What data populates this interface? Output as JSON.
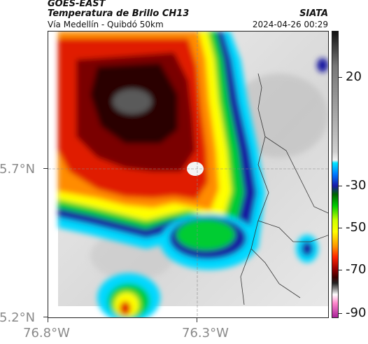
{
  "header": {
    "satellite": "GOES-EAST",
    "title": "Temperatura de Brillo CH13",
    "route": "Vía Medellín - Quibdó 50km",
    "org": "SIATA",
    "timestamp": "2024-04-26 00:29"
  },
  "axes": {
    "lat_labels": [
      "5.7°N",
      "5.2°N"
    ],
    "lon_labels": [
      "76.8°W",
      "76.3°W"
    ]
  },
  "colorbar": {
    "labels": [
      "20",
      "-30",
      "-50",
      "-70",
      "-90"
    ]
  },
  "colors": {
    "cold_core": "#3a0000",
    "red": "#e01a00",
    "orange": "#ff8c00",
    "yellow": "#ffff00",
    "green": "#00cc33",
    "blue": "#1414a0",
    "cyan": "#00d8ff",
    "clear_sky": "#e6e6e6"
  }
}
